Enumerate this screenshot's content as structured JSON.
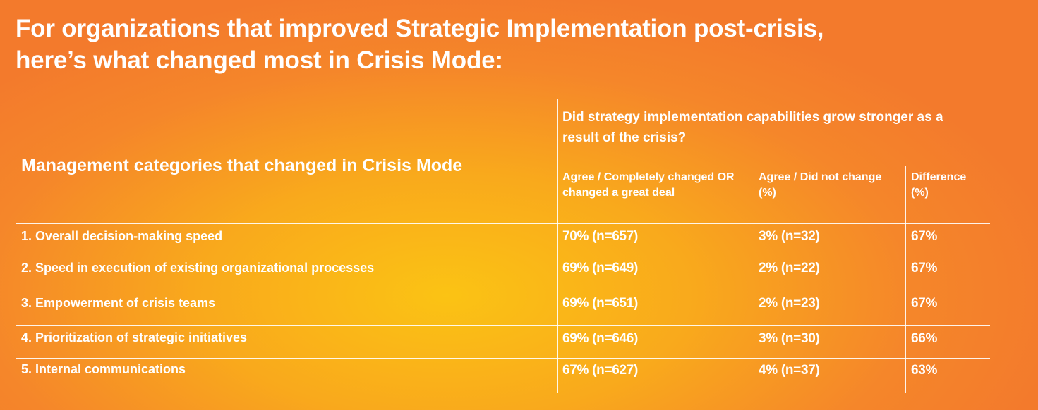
{
  "title_lines": [
    "For organizations that improved Strategic Implementation post-crisis,",
    "here’s what changed most in Crisis Mode:"
  ],
  "table": {
    "row_header": "Management categories that changed in Crisis Mode",
    "question": "Did strategy implementation capabilities grow stronger as a result of the crisis?",
    "columns": [
      "Agree / Completely changed OR changed a great deal",
      "Agree / Did not change (%)",
      "Difference (%)"
    ],
    "rows": [
      {
        "category": "1. Overall decision-making speed",
        "agree_changed": "70% (n=657)",
        "agree_not_changed": "3% (n=32)",
        "difference": "67%"
      },
      {
        "category": "2. Speed in execution of existing organizational processes",
        "agree_changed": "69% (n=649)",
        "agree_not_changed": "2% (n=22)",
        "difference": "67%"
      },
      {
        "category": "3. Empowerment of crisis teams",
        "agree_changed": "69% (n=651)",
        "agree_not_changed": "2% (n=23)",
        "difference": "67%"
      },
      {
        "category": "4. Prioritization of strategic initiatives",
        "agree_changed": "69% (n=646)",
        "agree_not_changed": "3% (n=30)",
        "difference": "66%"
      },
      {
        "category": "5. Internal communications",
        "agree_changed": "67% (n=627)",
        "agree_not_changed": "4% (n=37)",
        "difference": "63%"
      }
    ]
  },
  "colors": {
    "background_center": "#fbc314",
    "background_edge": "#f37a2c",
    "text": "#ffffff"
  }
}
